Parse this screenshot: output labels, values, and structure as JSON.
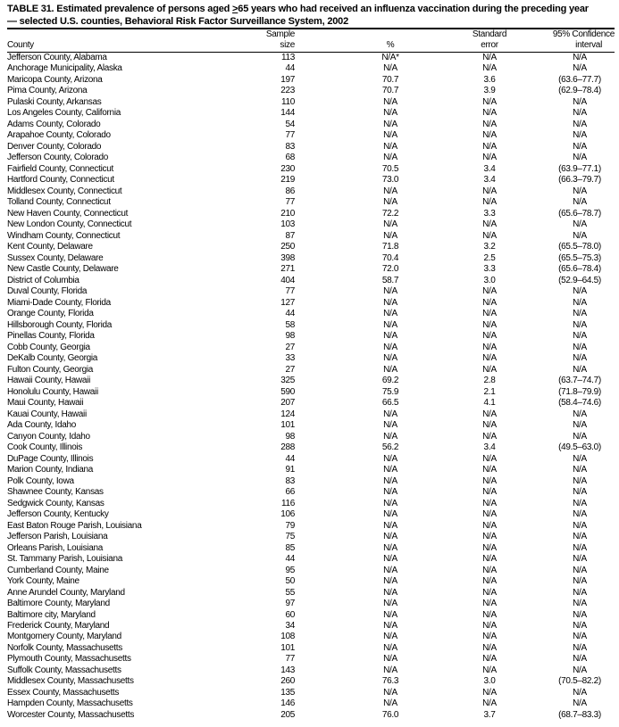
{
  "title": {
    "line1_prefix": "TABLE 31. Estimated prevalence of persons aged ",
    "line1_ge": ">",
    "line1_suffix": "65 years who had received an influenza vaccination during the preceding year",
    "line2": "— selected U.S. counties, Behavioral Risk Factor Surveillance System, 2002"
  },
  "headers": {
    "county": "County",
    "sample_1": "Sample",
    "sample_2": "size",
    "pct": "%",
    "se_1": "Standard",
    "se_2": "error",
    "ci_1": "95% Confidence",
    "ci_2": "interval"
  },
  "rows": [
    [
      "Jefferson County, Alabama",
      "113",
      "N/A*",
      "N/A",
      "N/A"
    ],
    [
      "Anchorage Municipality, Alaska",
      "44",
      "N/A",
      "N/A",
      "N/A"
    ],
    [
      "Maricopa County, Arizona",
      "197",
      "70.7",
      "3.6",
      "(63.6–77.7)"
    ],
    [
      "Pima County, Arizona",
      "223",
      "70.7",
      "3.9",
      "(62.9–78.4)"
    ],
    [
      "Pulaski County, Arkansas",
      "110",
      "N/A",
      "N/A",
      "N/A"
    ],
    [
      "Los Angeles County, California",
      "144",
      "N/A",
      "N/A",
      "N/A"
    ],
    [
      "Adams County, Colorado",
      "54",
      "N/A",
      "N/A",
      "N/A"
    ],
    [
      "Arapahoe County, Colorado",
      "77",
      "N/A",
      "N/A",
      "N/A"
    ],
    [
      "Denver County, Colorado",
      "83",
      "N/A",
      "N/A",
      "N/A"
    ],
    [
      "Jefferson County, Colorado",
      "68",
      "N/A",
      "N/A",
      "N/A"
    ],
    [
      "Fairfield County, Connecticut",
      "230",
      "70.5",
      "3.4",
      "(63.9–77.1)"
    ],
    [
      "Hartford County, Connecticut",
      "219",
      "73.0",
      "3.4",
      "(66.3–79.7)"
    ],
    [
      "Middlesex County, Connecticut",
      "86",
      "N/A",
      "N/A",
      "N/A"
    ],
    [
      "Tolland County, Connecticut",
      "77",
      "N/A",
      "N/A",
      "N/A"
    ],
    [
      "New Haven County, Connecticut",
      "210",
      "72.2",
      "3.3",
      "(65.6–78.7)"
    ],
    [
      "New London County, Connecticut",
      "103",
      "N/A",
      "N/A",
      "N/A"
    ],
    [
      "Windham County, Connecticut",
      "87",
      "N/A",
      "N/A",
      "N/A"
    ],
    [
      "Kent County, Delaware",
      "250",
      "71.8",
      "3.2",
      "(65.5–78.0)"
    ],
    [
      "Sussex County, Delaware",
      "398",
      "70.4",
      "2.5",
      "(65.5–75.3)"
    ],
    [
      "New Castle County, Delaware",
      "271",
      "72.0",
      "3.3",
      "(65.6–78.4)"
    ],
    [
      "District of Columbia",
      "404",
      "58.7",
      "3.0",
      "(52.9–64.5)"
    ],
    [
      "Duval County, Florida",
      "77",
      "N/A",
      "N/A",
      "N/A"
    ],
    [
      "Miami-Dade County, Florida",
      "127",
      "N/A",
      "N/A",
      "N/A"
    ],
    [
      "Orange County, Florida",
      "44",
      "N/A",
      "N/A",
      "N/A"
    ],
    [
      "Hillsborough County, Florida",
      "58",
      "N/A",
      "N/A",
      "N/A"
    ],
    [
      "Pinellas County, Florida",
      "98",
      "N/A",
      "N/A",
      "N/A"
    ],
    [
      "Cobb County, Georgia",
      "27",
      "N/A",
      "N/A",
      "N/A"
    ],
    [
      "DeKalb County, Georgia",
      "33",
      "N/A",
      "N/A",
      "N/A"
    ],
    [
      "Fulton County, Georgia",
      "27",
      "N/A",
      "N/A",
      "N/A"
    ],
    [
      "Hawaii County, Hawaii",
      "325",
      "69.2",
      "2.8",
      "(63.7–74.7)"
    ],
    [
      "Honolulu County, Hawaii",
      "590",
      "75.9",
      "2.1",
      "(71.8–79.9)"
    ],
    [
      "Maui County, Hawaii",
      "207",
      "66.5",
      "4.1",
      "(58.4–74.6)"
    ],
    [
      "Kauai County, Hawaii",
      "124",
      "N/A",
      "N/A",
      "N/A"
    ],
    [
      "Ada County, Idaho",
      "101",
      "N/A",
      "N/A",
      "N/A"
    ],
    [
      "Canyon County, Idaho",
      "98",
      "N/A",
      "N/A",
      "N/A"
    ],
    [
      "Cook County, Illinois",
      "288",
      "56.2",
      "3.4",
      "(49.5–63.0)"
    ],
    [
      "DuPage County, Illinois",
      "44",
      "N/A",
      "N/A",
      "N/A"
    ],
    [
      "Marion County, Indiana",
      "91",
      "N/A",
      "N/A",
      "N/A"
    ],
    [
      "Polk County, Iowa",
      "83",
      "N/A",
      "N/A",
      "N/A"
    ],
    [
      "Shawnee County, Kansas",
      "66",
      "N/A",
      "N/A",
      "N/A"
    ],
    [
      "Sedgwick County, Kansas",
      "116",
      "N/A",
      "N/A",
      "N/A"
    ],
    [
      "Jefferson County, Kentucky",
      "106",
      "N/A",
      "N/A",
      "N/A"
    ],
    [
      "East Baton Rouge Parish, Louisiana",
      "79",
      "N/A",
      "N/A",
      "N/A"
    ],
    [
      "Jefferson Parish, Louisiana",
      "75",
      "N/A",
      "N/A",
      "N/A"
    ],
    [
      "Orleans Parish, Louisiana",
      "85",
      "N/A",
      "N/A",
      "N/A"
    ],
    [
      "St. Tammany Parish, Louisiana",
      "44",
      "N/A",
      "N/A",
      "N/A"
    ],
    [
      "Cumberland County, Maine",
      "95",
      "N/A",
      "N/A",
      "N/A"
    ],
    [
      "York County, Maine",
      "50",
      "N/A",
      "N/A",
      "N/A"
    ],
    [
      "Anne Arundel County, Maryland",
      "55",
      "N/A",
      "N/A",
      "N/A"
    ],
    [
      "Baltimore County, Maryland",
      "97",
      "N/A",
      "N/A",
      "N/A"
    ],
    [
      "Baltimore city, Maryland",
      "60",
      "N/A",
      "N/A",
      "N/A"
    ],
    [
      "Frederick County, Maryland",
      "34",
      "N/A",
      "N/A",
      "N/A"
    ],
    [
      "Montgomery County, Maryland",
      "108",
      "N/A",
      "N/A",
      "N/A"
    ],
    [
      "Norfolk County, Massachusetts",
      "101",
      "N/A",
      "N/A",
      "N/A"
    ],
    [
      "Plymouth County, Massachusetts",
      "77",
      "N/A",
      "N/A",
      "N/A"
    ],
    [
      "Suffolk County, Massachusetts",
      "143",
      "N/A",
      "N/A",
      "N/A"
    ],
    [
      "Middlesex County, Massachusetts",
      "260",
      "76.3",
      "3.0",
      "(70.5–82.2)"
    ],
    [
      "Essex County, Massachusetts",
      "135",
      "N/A",
      "N/A",
      "N/A"
    ],
    [
      "Hampden County, Massachusetts",
      "146",
      "N/A",
      "N/A",
      "N/A"
    ],
    [
      "Worcester County, Massachusetts",
      "205",
      "76.0",
      "3.7",
      "(68.7–83.3)"
    ]
  ]
}
